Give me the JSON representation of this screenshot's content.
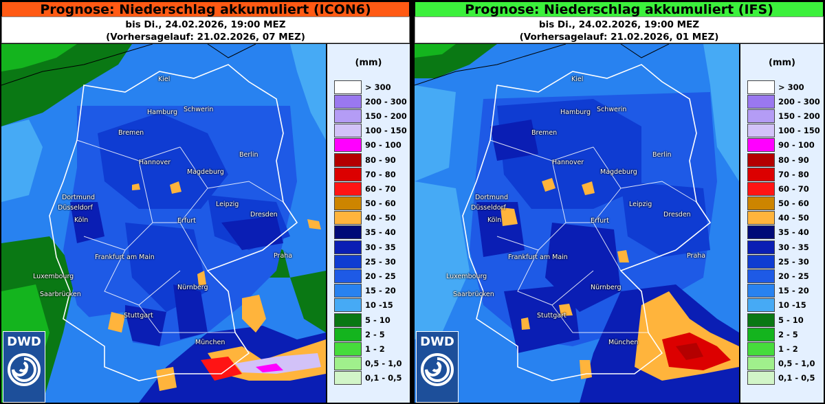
{
  "panels": [
    {
      "title": "Prognose: Niederschlag akkumuliert (ICON6)",
      "title_bg": "#ff5a14",
      "line1": "bis Di., 24.02.2026, 19:00 MEZ",
      "line2": "(Vorhersagelauf: 21.02.2026, 07 MEZ)"
    },
    {
      "title": "Prognose: Niederschlag akkumuliert (IFS)",
      "title_bg": "#3cf03c",
      "line1": "bis Di., 24.02.2026, 19:00 MEZ",
      "line2": "(Vorhersagelauf: 21.02.2026, 01 MEZ)"
    }
  ],
  "legend": {
    "unit": "(mm)",
    "items": [
      {
        "label": "> 300",
        "color": "#ffffff"
      },
      {
        "label": "200 - 300",
        "color": "#9a78f0"
      },
      {
        "label": "150 - 200",
        "color": "#b49cf5"
      },
      {
        "label": "100 - 150",
        "color": "#d2c2f8"
      },
      {
        "label": "90 - 100",
        "color": "#ff00ff"
      },
      {
        "label": "80 - 90",
        "color": "#b40000"
      },
      {
        "label": "70 - 80",
        "color": "#dc0000"
      },
      {
        "label": "60 - 70",
        "color": "#ff1414"
      },
      {
        "label": "50 - 60",
        "color": "#cd8500"
      },
      {
        "label": "40 - 50",
        "color": "#ffb43c"
      },
      {
        "label": "35 - 40",
        "color": "#000a78"
      },
      {
        "label": "30 - 35",
        "color": "#0a1eb4"
      },
      {
        "label": "25 - 30",
        "color": "#0f3cd2"
      },
      {
        "label": "20 - 25",
        "color": "#1e5ae6"
      },
      {
        "label": "15 - 20",
        "color": "#2882f0"
      },
      {
        "label": "10 -15",
        "color": "#46aaf5"
      },
      {
        "label": "5 - 10",
        "color": "#0a7814"
      },
      {
        "label": "2 - 5",
        "color": "#14b41e"
      },
      {
        "label": "1 - 2",
        "color": "#46dc3c"
      },
      {
        "label": "0,5 - 1,0",
        "color": "#a0f08c"
      },
      {
        "label": "0,1 - 0,5",
        "color": "#d2f5c8"
      }
    ]
  },
  "cities": [
    "Kiel",
    "Hamburg",
    "Schwerin",
    "Bremen",
    "Berlin",
    "Hannover",
    "Magdeburg",
    "Dortmund",
    "Düsseldorf",
    "Köln",
    "Leipzig",
    "Dresden",
    "Erfurt",
    "Frankfurt am Main",
    "Praha",
    "Luxembourg",
    "Nürnberg",
    "Saarbrücken",
    "Stuttgart",
    "München"
  ],
  "logo": "DWD"
}
